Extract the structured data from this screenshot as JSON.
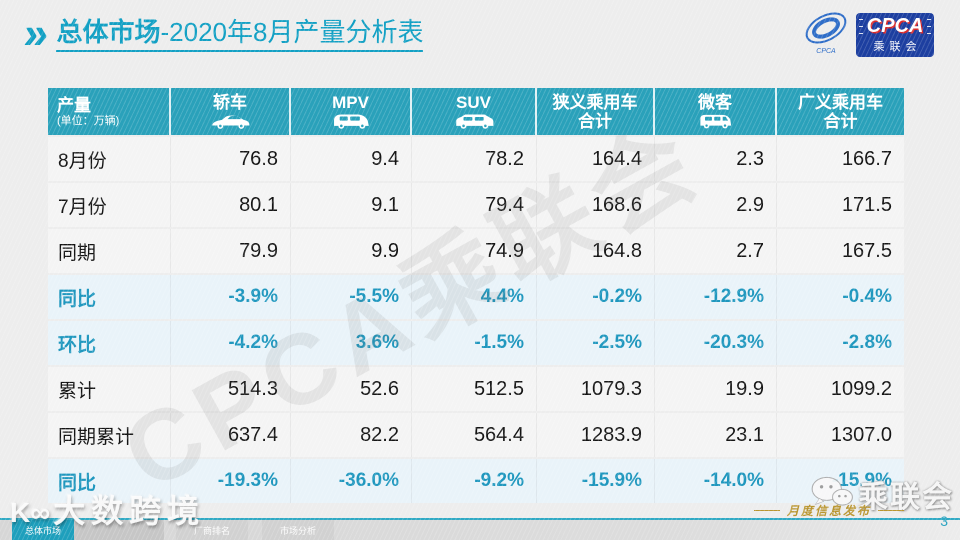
{
  "title": {
    "chevrons": "»",
    "emphasis": "总体市场",
    "rest": "-2020年8月产量分析表"
  },
  "logo": {
    "acronym": "CPCA",
    "name": "乘联会",
    "mark_caption": "CPCA"
  },
  "table": {
    "corner": {
      "label": "产量",
      "unit": "(单位：万辆)"
    },
    "columns": [
      {
        "label": "轿车",
        "icon": "sedan-icon"
      },
      {
        "label": "MPV",
        "icon": "mpv-icon"
      },
      {
        "label": "SUV",
        "icon": "suv-icon"
      },
      {
        "label": "狭义乘用车",
        "line2": "合计"
      },
      {
        "label": "微客",
        "icon": "microvan-icon"
      },
      {
        "label": "广义乘用车",
        "line2": "合计"
      }
    ],
    "rows": [
      {
        "label": "8月份",
        "type": "normal",
        "values": [
          "76.8",
          "9.4",
          "78.2",
          "164.4",
          "2.3",
          "166.7"
        ]
      },
      {
        "label": "7月份",
        "type": "normal",
        "values": [
          "80.1",
          "9.1",
          "79.4",
          "168.6",
          "2.9",
          "171.5"
        ]
      },
      {
        "label": "同期",
        "type": "normal",
        "values": [
          "79.9",
          "9.9",
          "74.9",
          "164.8",
          "2.7",
          "167.5"
        ]
      },
      {
        "label": "同比",
        "type": "rate",
        "values": [
          "-3.9%",
          "-5.5%",
          "4.4%",
          "-0.2%",
          "-12.9%",
          "-0.4%"
        ]
      },
      {
        "label": "环比",
        "type": "rate",
        "values": [
          "-4.2%",
          "3.6%",
          "-1.5%",
          "-2.5%",
          "-20.3%",
          "-2.8%"
        ]
      },
      {
        "label": "累计",
        "type": "normal",
        "values": [
          "514.3",
          "52.6",
          "512.5",
          "1079.3",
          "19.9",
          "1099.2"
        ]
      },
      {
        "label": "同期累计",
        "type": "normal",
        "values": [
          "637.4",
          "82.2",
          "564.4",
          "1283.9",
          "23.1",
          "1307.0"
        ]
      },
      {
        "label": "同比",
        "type": "rate",
        "values": [
          "-19.3%",
          "-36.0%",
          "-9.2%",
          "-15.9%",
          "-14.0%",
          "-15.9%"
        ]
      }
    ]
  },
  "watermarks": {
    "diagonal": "CPCA乘联会",
    "bottom_left_logo": "K∞",
    "bottom_left": "大数跨境",
    "wechat_name": "乘联会"
  },
  "footer": {
    "tabs": [
      {
        "label": "总体市场",
        "active": true
      },
      {
        "label": "",
        "active": false
      },
      {
        "label": "厂商排名",
        "active": false
      },
      {
        "label": "市场分析",
        "active": false
      }
    ],
    "publication": "月度信息发布",
    "page": "3"
  },
  "colors": {
    "header_teal": "#2AA1BA",
    "title_teal": "#12A0C4",
    "rate_text": "#1F97BE",
    "rate_row_bg": "#E9F3F9",
    "gold": "#B9952F",
    "logo_blue": "#1D3FA0"
  }
}
